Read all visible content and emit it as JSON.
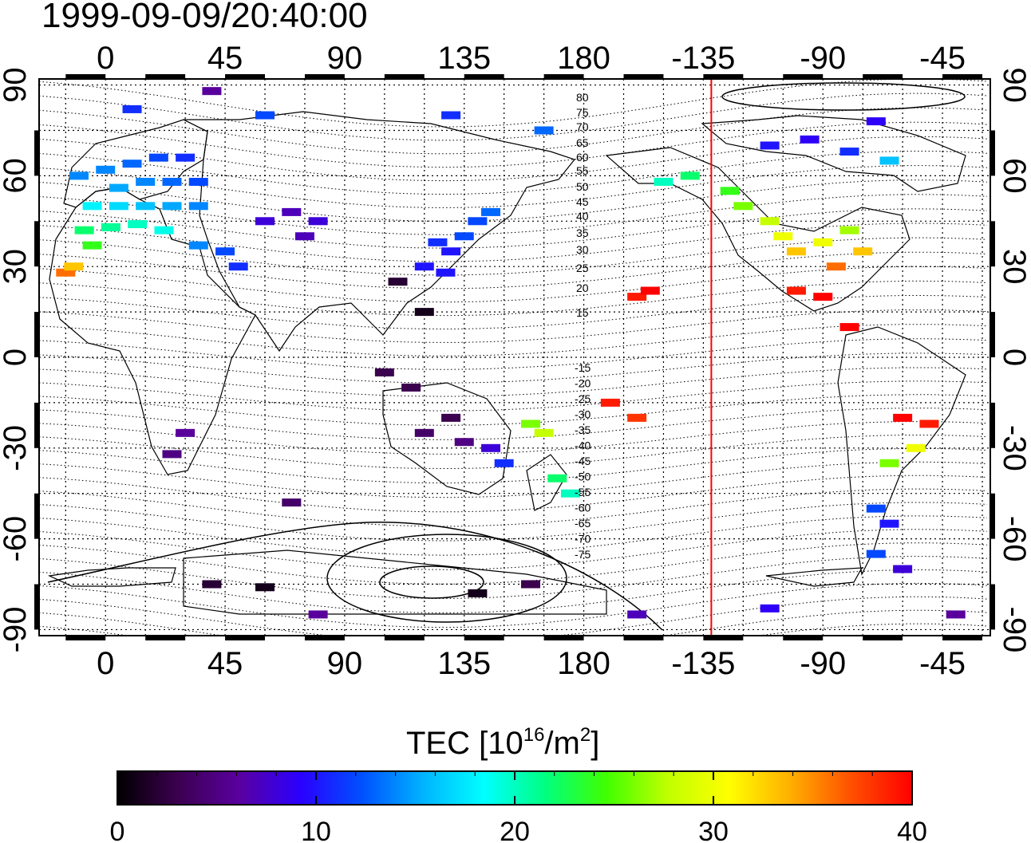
{
  "title": "1999-09-09/20:40:00",
  "map": {
    "lon_ticks_top": [
      "0",
      "45",
      "90",
      "135",
      "180",
      "-135",
      "-90",
      "-45"
    ],
    "lon_ticks_bottom": [
      "0",
      "45",
      "90",
      "135",
      "180",
      "-135",
      "-90",
      "-45"
    ],
    "lat_ticks": [
      "90",
      "60",
      "30",
      "0",
      "-30",
      "-60",
      "-90"
    ],
    "lon_tick_values": [
      0,
      45,
      90,
      135,
      180,
      225,
      270,
      315
    ],
    "lat_tick_values": [
      90,
      60,
      30,
      0,
      -30,
      -60,
      -90
    ],
    "lon_range": [
      -25,
      333
    ],
    "lat_range": [
      -92,
      92
    ],
    "marker_line": {
      "label": "red meridian",
      "lon": -132,
      "color": "#ff0000"
    },
    "magnetic_latitude_labels": [
      "80",
      "75",
      "70",
      "65",
      "60",
      "55",
      "50",
      "45",
      "40",
      "35",
      "30",
      "25",
      "20",
      "15",
      "-15",
      "-20",
      "-25",
      "-30",
      "-35",
      "-40",
      "-45",
      "-50",
      "-55",
      "-60",
      "-65",
      "-70",
      "-75"
    ]
  },
  "colorbar": {
    "title_prefix": "TEC  [10",
    "title_sup1": "16",
    "title_mid": "/m",
    "title_sup2": "2",
    "title_suffix": "]",
    "range": [
      0,
      40
    ],
    "tick_labels": [
      "0",
      "10",
      "20",
      "30",
      "40"
    ],
    "colors": [
      "#000000",
      "#3c0050",
      "#5a00a0",
      "#2a00ff",
      "#0050ff",
      "#00b4ff",
      "#00ffff",
      "#00ff80",
      "#40ff00",
      "#c0ff00",
      "#ffff00",
      "#ffb000",
      "#ff5000",
      "#ff0000"
    ]
  },
  "chart_data": {
    "type": "scatter",
    "title": "1999-09-09/20:40:00",
    "colorbar_label": "TEC [10^16/m^2]",
    "value_range": [
      0,
      40
    ],
    "points": [
      {
        "lon": -10,
        "lat": 60,
        "tec": 14
      },
      {
        "lon": 0,
        "lat": 62,
        "tec": 14
      },
      {
        "lon": 10,
        "lat": 64,
        "tec": 13
      },
      {
        "lon": 20,
        "lat": 66,
        "tec": 12
      },
      {
        "lon": 30,
        "lat": 66,
        "tec": 11
      },
      {
        "lon": 5,
        "lat": 56,
        "tec": 15
      },
      {
        "lon": 15,
        "lat": 58,
        "tec": 14
      },
      {
        "lon": 25,
        "lat": 58,
        "tec": 13
      },
      {
        "lon": 35,
        "lat": 58,
        "tec": 12
      },
      {
        "lon": -5,
        "lat": 50,
        "tec": 18
      },
      {
        "lon": 5,
        "lat": 50,
        "tec": 17
      },
      {
        "lon": 15,
        "lat": 50,
        "tec": 16
      },
      {
        "lon": 25,
        "lat": 50,
        "tec": 15
      },
      {
        "lon": 35,
        "lat": 50,
        "tec": 14
      },
      {
        "lon": -8,
        "lat": 42,
        "tec": 22
      },
      {
        "lon": 2,
        "lat": 43,
        "tec": 21
      },
      {
        "lon": 12,
        "lat": 44,
        "tec": 20
      },
      {
        "lon": 22,
        "lat": 42,
        "tec": 19
      },
      {
        "lon": -15,
        "lat": 28,
        "tec": 36
      },
      {
        "lon": -12,
        "lat": 30,
        "tec": 33
      },
      {
        "lon": -5,
        "lat": 37,
        "tec": 24
      },
      {
        "lon": 35,
        "lat": 37,
        "tec": 14
      },
      {
        "lon": 45,
        "lat": 35,
        "tec": 12
      },
      {
        "lon": 50,
        "lat": 30,
        "tec": 11
      },
      {
        "lon": 60,
        "lat": 45,
        "tec": 8
      },
      {
        "lon": 70,
        "lat": 48,
        "tec": 7
      },
      {
        "lon": 80,
        "lat": 45,
        "tec": 8
      },
      {
        "lon": 75,
        "lat": 40,
        "tec": 7
      },
      {
        "lon": 125,
        "lat": 38,
        "tec": 11
      },
      {
        "lon": 130,
        "lat": 35,
        "tec": 10
      },
      {
        "lon": 135,
        "lat": 40,
        "tec": 12
      },
      {
        "lon": 140,
        "lat": 45,
        "tec": 12
      },
      {
        "lon": 145,
        "lat": 48,
        "tec": 13
      },
      {
        "lon": 120,
        "lat": 30,
        "tec": 10
      },
      {
        "lon": 128,
        "lat": 28,
        "tec": 10
      },
      {
        "lon": 120,
        "lat": 15,
        "tec": 1
      },
      {
        "lon": 110,
        "lat": 25,
        "tec": 2
      },
      {
        "lon": 105,
        "lat": -5,
        "tec": 3
      },
      {
        "lon": 115,
        "lat": -10,
        "tec": 3
      },
      {
        "lon": 120,
        "lat": -25,
        "tec": 4
      },
      {
        "lon": 130,
        "lat": -20,
        "tec": 3
      },
      {
        "lon": 135,
        "lat": -28,
        "tec": 5
      },
      {
        "lon": 145,
        "lat": -30,
        "tec": 8
      },
      {
        "lon": 150,
        "lat": -35,
        "tec": 11
      },
      {
        "lon": 170,
        "lat": -40,
        "tec": 22
      },
      {
        "lon": 175,
        "lat": -45,
        "tec": 20
      },
      {
        "lon": 165,
        "lat": -25,
        "tec": 28
      },
      {
        "lon": 160,
        "lat": -22,
        "tec": 26
      },
      {
        "lon": 190,
        "lat": -15,
        "tec": 39
      },
      {
        "lon": 200,
        "lat": -20,
        "tec": 38
      },
      {
        "lon": 200,
        "lat": 20,
        "tec": 39
      },
      {
        "lon": 205,
        "lat": 22,
        "tec": 40
      },
      {
        "lon": 210,
        "lat": 58,
        "tec": 20
      },
      {
        "lon": 220,
        "lat": 60,
        "tec": 22
      },
      {
        "lon": 235,
        "lat": 55,
        "tec": 24
      },
      {
        "lon": 240,
        "lat": 50,
        "tec": 26
      },
      {
        "lon": 250,
        "lat": 45,
        "tec": 28
      },
      {
        "lon": 255,
        "lat": 40,
        "tec": 30
      },
      {
        "lon": 260,
        "lat": 35,
        "tec": 33
      },
      {
        "lon": 270,
        "lat": 38,
        "tec": 30
      },
      {
        "lon": 280,
        "lat": 42,
        "tec": 27
      },
      {
        "lon": 285,
        "lat": 35,
        "tec": 33
      },
      {
        "lon": 275,
        "lat": 30,
        "tec": 36
      },
      {
        "lon": 260,
        "lat": 22,
        "tec": 39
      },
      {
        "lon": 270,
        "lat": 20,
        "tec": 40
      },
      {
        "lon": 280,
        "lat": 10,
        "tec": 40
      },
      {
        "lon": 250,
        "lat": 70,
        "tec": 10
      },
      {
        "lon": 265,
        "lat": 72,
        "tec": 9
      },
      {
        "lon": 280,
        "lat": 68,
        "tec": 11
      },
      {
        "lon": 295,
        "lat": 65,
        "tec": 16
      },
      {
        "lon": 300,
        "lat": -20,
        "tec": 40
      },
      {
        "lon": 310,
        "lat": -22,
        "tec": 39
      },
      {
        "lon": 305,
        "lat": -30,
        "tec": 30
      },
      {
        "lon": 295,
        "lat": -35,
        "tec": 26
      },
      {
        "lon": 290,
        "lat": -50,
        "tec": 12
      },
      {
        "lon": 295,
        "lat": -55,
        "tec": 10
      },
      {
        "lon": 290,
        "lat": -65,
        "tec": 12
      },
      {
        "lon": 300,
        "lat": -70,
        "tec": 8
      },
      {
        "lon": 30,
        "lat": -25,
        "tec": 6
      },
      {
        "lon": 25,
        "lat": -32,
        "tec": 5
      },
      {
        "lon": 70,
        "lat": -48,
        "tec": 4
      },
      {
        "lon": 40,
        "lat": -75,
        "tec": 2
      },
      {
        "lon": 60,
        "lat": -76,
        "tec": 1
      },
      {
        "lon": 140,
        "lat": -78,
        "tec": 1
      },
      {
        "lon": 160,
        "lat": -75,
        "tec": 3
      },
      {
        "lon": 80,
        "lat": -85,
        "tec": 6
      },
      {
        "lon": 200,
        "lat": -85,
        "tec": 7
      },
      {
        "lon": 250,
        "lat": -83,
        "tec": 9
      },
      {
        "lon": 320,
        "lat": -85,
        "tec": 6
      },
      {
        "lon": 40,
        "lat": 88,
        "tec": 6
      },
      {
        "lon": 10,
        "lat": 82,
        "tec": 11
      },
      {
        "lon": 60,
        "lat": 80,
        "tec": 12
      },
      {
        "lon": 130,
        "lat": 80,
        "tec": 11
      },
      {
        "lon": 165,
        "lat": 75,
        "tec": 13
      },
      {
        "lon": 290,
        "lat": 78,
        "tec": 9
      }
    ]
  }
}
